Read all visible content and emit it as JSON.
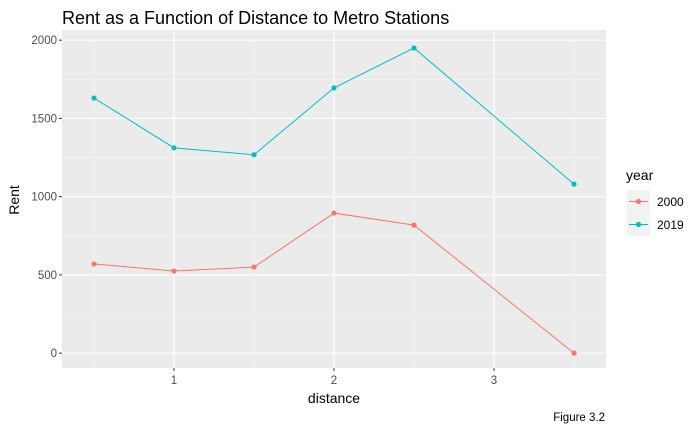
{
  "chart_data": {
    "type": "line",
    "title": "Rent as a Function of Distance to Metro Stations",
    "xlabel": "distance",
    "ylabel": "Rent",
    "caption": "Figure 3.2",
    "x": [
      0.5,
      1.0,
      1.5,
      2.0,
      2.5,
      3.5
    ],
    "xlim": [
      0.3,
      3.7
    ],
    "ylim": [
      -95,
      2065
    ],
    "x_ticks": [
      1,
      2,
      3
    ],
    "x_tick_labels": [
      "1",
      "2",
      "3"
    ],
    "y_ticks": [
      0,
      500,
      1000,
      1500,
      2000
    ],
    "y_tick_labels": [
      "0",
      "500",
      "1000",
      "1500",
      "2000"
    ],
    "grid": true,
    "legend": {
      "title": "year",
      "position": "right"
    },
    "series": [
      {
        "name": "2000",
        "color": "#F8766D",
        "values": [
          570,
          525,
          550,
          895,
          818,
          0
        ]
      },
      {
        "name": "2019",
        "color": "#00BFC4",
        "values": [
          1630,
          1312,
          1268,
          1695,
          1950,
          1080
        ]
      }
    ]
  }
}
